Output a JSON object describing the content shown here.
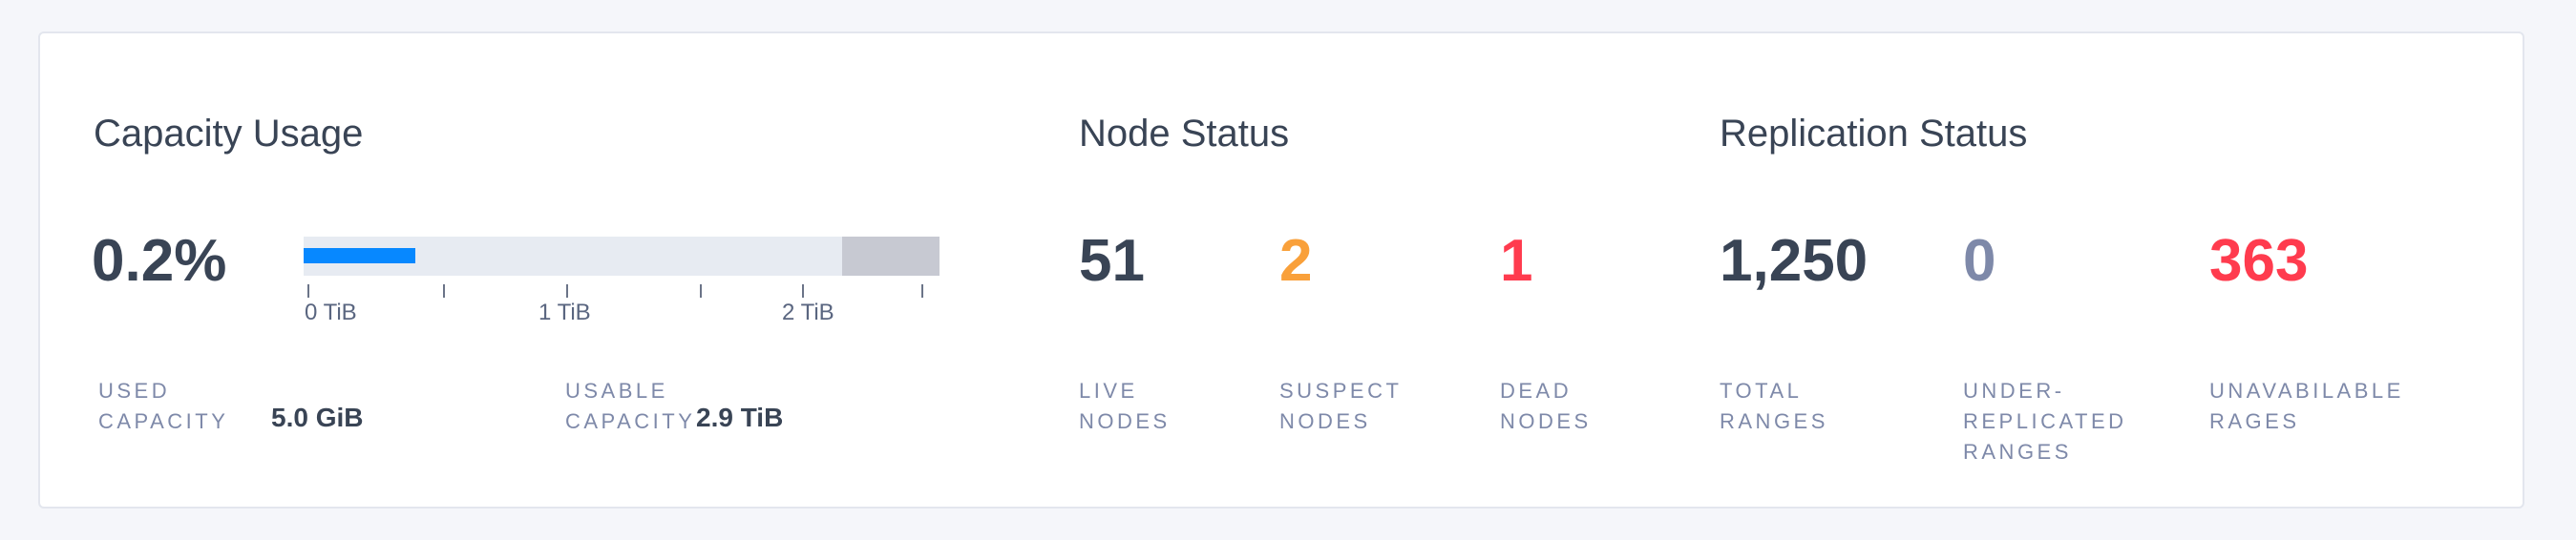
{
  "capacity": {
    "title": "Capacity Usage",
    "percent": "0.2%",
    "used_fraction": 0.002,
    "axis_ticks": [
      "0 TiB",
      "1 TiB",
      "2 TiB"
    ],
    "used_label": "USED CAPACITY",
    "used_value": "5.0 GiB",
    "usable_label": "USABLE CAPACITY",
    "usable_value": "2.9 TiB",
    "bar_color": "#0788ff"
  },
  "nodes": {
    "title": "Node Status",
    "stats": [
      {
        "value": "51",
        "label": "LIVE NODES",
        "color": "#394455"
      },
      {
        "value": "2",
        "label": "SUSPECT NODES",
        "color": "#f9a03a"
      },
      {
        "value": "1",
        "label": "DEAD NODES",
        "color": "#ff3b4e"
      }
    ]
  },
  "replication": {
    "title": "Replication Status",
    "stats": [
      {
        "value": "1,250",
        "label": "TOTAL RANGES",
        "color": "#394455"
      },
      {
        "value": "0",
        "label": "UNDER-REPLICATED RANGES",
        "color": "#7e89a9"
      },
      {
        "value": "363",
        "label": "UNAVABILABLE RAGES",
        "color": "#ff3b4e"
      }
    ]
  }
}
